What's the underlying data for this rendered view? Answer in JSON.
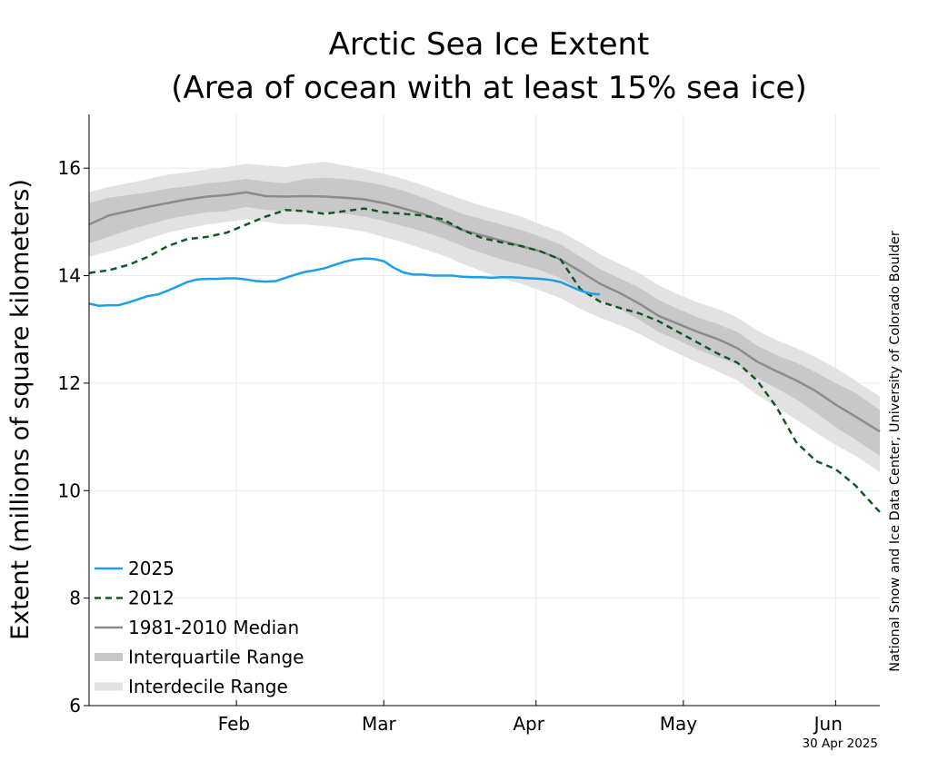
{
  "chart_data": {
    "type": "line",
    "title": [
      "Arctic Sea Ice Extent",
      "(Area of ocean with at least 15% sea ice)"
    ],
    "ylabel": "Extent (millions of square kilometers)",
    "ylim": [
      6,
      17
    ],
    "yticks": [
      6,
      8,
      10,
      12,
      14,
      16
    ],
    "xlim": [
      16,
      177
    ],
    "xticks": [
      {
        "label": "Feb",
        "day": 45.5
      },
      {
        "label": "Mar",
        "day": 75
      },
      {
        "label": "Apr",
        "day": 105.5
      },
      {
        "label": "May",
        "day": 136
      },
      {
        "label": "Jun",
        "day": 166.5
      }
    ],
    "xgrid_days": [
      46,
      76,
      107,
      137,
      168
    ],
    "grid": true,
    "legend_position": "lower-left",
    "credit": "National Snow and Ice Data Center, University of Colorado Boulder",
    "date_stamp": "30 Apr 2025",
    "series": [
      {
        "name": "2025",
        "style": "solid",
        "color": "#1a9fea",
        "x": [
          16,
          18,
          20,
          22,
          24,
          26,
          28,
          30,
          32,
          34,
          36,
          38,
          40,
          42,
          44,
          46,
          48,
          50,
          52,
          54,
          56,
          58,
          60,
          62,
          64,
          66,
          68,
          70,
          72,
          74,
          76,
          78,
          80,
          82,
          84,
          86,
          88,
          90,
          92,
          94,
          96,
          98,
          100,
          102,
          104,
          106,
          108,
          110,
          112,
          114,
          116,
          118,
          120
        ],
        "values": [
          13.48,
          13.44,
          13.45,
          13.45,
          13.5,
          13.56,
          13.62,
          13.65,
          13.72,
          13.8,
          13.88,
          13.93,
          13.94,
          13.94,
          13.95,
          13.95,
          13.93,
          13.9,
          13.89,
          13.9,
          13.96,
          14.02,
          14.07,
          14.1,
          14.14,
          14.2,
          14.26,
          14.3,
          14.32,
          14.31,
          14.27,
          14.15,
          14.06,
          14.02,
          14.02,
          14.0,
          14.0,
          14.0,
          13.98,
          13.97,
          13.97,
          13.96,
          13.97,
          13.97,
          13.96,
          13.95,
          13.94,
          13.92,
          13.88,
          13.8,
          13.72,
          13.67,
          13.65
        ]
      },
      {
        "name": "2012",
        "style": "dashed",
        "color": "#0f5a24",
        "x": [
          16,
          20,
          24,
          28,
          32,
          36,
          40,
          44,
          48,
          52,
          56,
          60,
          64,
          68,
          72,
          76,
          80,
          84,
          88,
          92,
          96,
          100,
          104,
          108,
          112,
          116,
          120,
          124,
          128,
          132,
          136,
          140,
          144,
          148,
          152,
          156,
          160,
          164,
          168,
          172,
          177
        ],
        "values": [
          14.05,
          14.1,
          14.2,
          14.35,
          14.55,
          14.68,
          14.72,
          14.8,
          14.95,
          15.1,
          15.22,
          15.2,
          15.15,
          15.2,
          15.25,
          15.18,
          15.15,
          15.12,
          15.05,
          14.85,
          14.7,
          14.62,
          14.55,
          14.45,
          14.3,
          13.75,
          13.52,
          13.4,
          13.3,
          13.15,
          12.95,
          12.75,
          12.55,
          12.38,
          12.05,
          11.55,
          10.9,
          10.55,
          10.4,
          10.1,
          9.6
        ]
      },
      {
        "name": "1981-2010 Median",
        "style": "solid",
        "color": "#8c8c8c",
        "x": [
          16,
          20,
          24,
          28,
          32,
          36,
          40,
          44,
          48,
          52,
          56,
          60,
          64,
          68,
          72,
          76,
          80,
          84,
          88,
          92,
          96,
          100,
          104,
          108,
          112,
          116,
          120,
          124,
          128,
          132,
          136,
          140,
          144,
          148,
          152,
          156,
          160,
          164,
          168,
          172,
          177
        ],
        "values": [
          14.95,
          15.12,
          15.2,
          15.28,
          15.35,
          15.42,
          15.47,
          15.5,
          15.55,
          15.48,
          15.47,
          15.48,
          15.47,
          15.45,
          15.42,
          15.35,
          15.25,
          15.15,
          15.0,
          14.85,
          14.75,
          14.65,
          14.55,
          14.45,
          14.3,
          14.08,
          13.85,
          13.68,
          13.48,
          13.25,
          13.1,
          12.95,
          12.82,
          12.65,
          12.4,
          12.22,
          12.05,
          11.85,
          11.6,
          11.38,
          11.1
        ]
      },
      {
        "name": "Interquartile Range",
        "style": "band",
        "color": "#c8c8c8",
        "x": [
          16,
          20,
          24,
          28,
          32,
          36,
          40,
          44,
          48,
          52,
          56,
          60,
          64,
          68,
          72,
          76,
          80,
          84,
          88,
          92,
          96,
          100,
          104,
          108,
          112,
          116,
          120,
          124,
          128,
          132,
          136,
          140,
          144,
          148,
          152,
          156,
          160,
          164,
          168,
          172,
          177
        ],
        "upper": [
          15.35,
          15.45,
          15.5,
          15.55,
          15.62,
          15.66,
          15.72,
          15.75,
          15.8,
          15.75,
          15.72,
          15.8,
          15.82,
          15.8,
          15.75,
          15.68,
          15.58,
          15.45,
          15.3,
          15.15,
          15.05,
          14.95,
          14.85,
          14.72,
          14.58,
          14.35,
          14.12,
          13.95,
          13.78,
          13.55,
          13.38,
          13.22,
          13.1,
          12.95,
          12.7,
          12.52,
          12.38,
          12.2,
          12.0,
          11.82,
          11.5
        ],
        "lower": [
          14.6,
          14.72,
          14.85,
          14.95,
          15.05,
          15.12,
          15.18,
          15.2,
          15.28,
          15.22,
          15.2,
          15.2,
          15.18,
          15.15,
          15.1,
          15.02,
          14.92,
          14.82,
          14.7,
          14.55,
          14.42,
          14.3,
          14.2,
          14.1,
          13.95,
          13.72,
          13.55,
          13.38,
          13.18,
          12.95,
          12.8,
          12.62,
          12.48,
          12.35,
          12.1,
          11.9,
          11.7,
          11.45,
          11.18,
          10.95,
          10.65
        ]
      },
      {
        "name": "Interdecile Range",
        "style": "band",
        "color": "#e2e2e2",
        "x": [
          16,
          20,
          24,
          28,
          32,
          36,
          40,
          44,
          48,
          52,
          56,
          60,
          64,
          68,
          72,
          76,
          80,
          84,
          88,
          92,
          96,
          100,
          104,
          108,
          112,
          116,
          120,
          124,
          128,
          132,
          136,
          140,
          144,
          148,
          152,
          156,
          160,
          164,
          168,
          172,
          177
        ],
        "upper": [
          15.55,
          15.65,
          15.72,
          15.8,
          15.88,
          15.92,
          15.98,
          16.02,
          16.08,
          16.05,
          16.02,
          16.08,
          16.12,
          16.05,
          15.98,
          15.9,
          15.8,
          15.68,
          15.55,
          15.42,
          15.3,
          15.2,
          15.1,
          14.95,
          14.82,
          14.62,
          14.4,
          14.22,
          14.05,
          13.82,
          13.65,
          13.5,
          13.38,
          13.22,
          12.98,
          12.8,
          12.65,
          12.48,
          12.28,
          12.05,
          11.75
        ],
        "lower": [
          14.35,
          14.45,
          14.55,
          14.68,
          14.8,
          14.88,
          14.95,
          15.0,
          15.05,
          15.0,
          14.95,
          14.95,
          14.92,
          14.88,
          14.82,
          14.72,
          14.62,
          14.5,
          14.38,
          14.22,
          14.08,
          13.95,
          13.85,
          13.72,
          13.58,
          13.38,
          13.22,
          13.08,
          12.92,
          12.72,
          12.55,
          12.38,
          12.22,
          12.05,
          11.78,
          11.55,
          11.32,
          11.08,
          10.85,
          10.65,
          10.35
        ]
      }
    ]
  }
}
